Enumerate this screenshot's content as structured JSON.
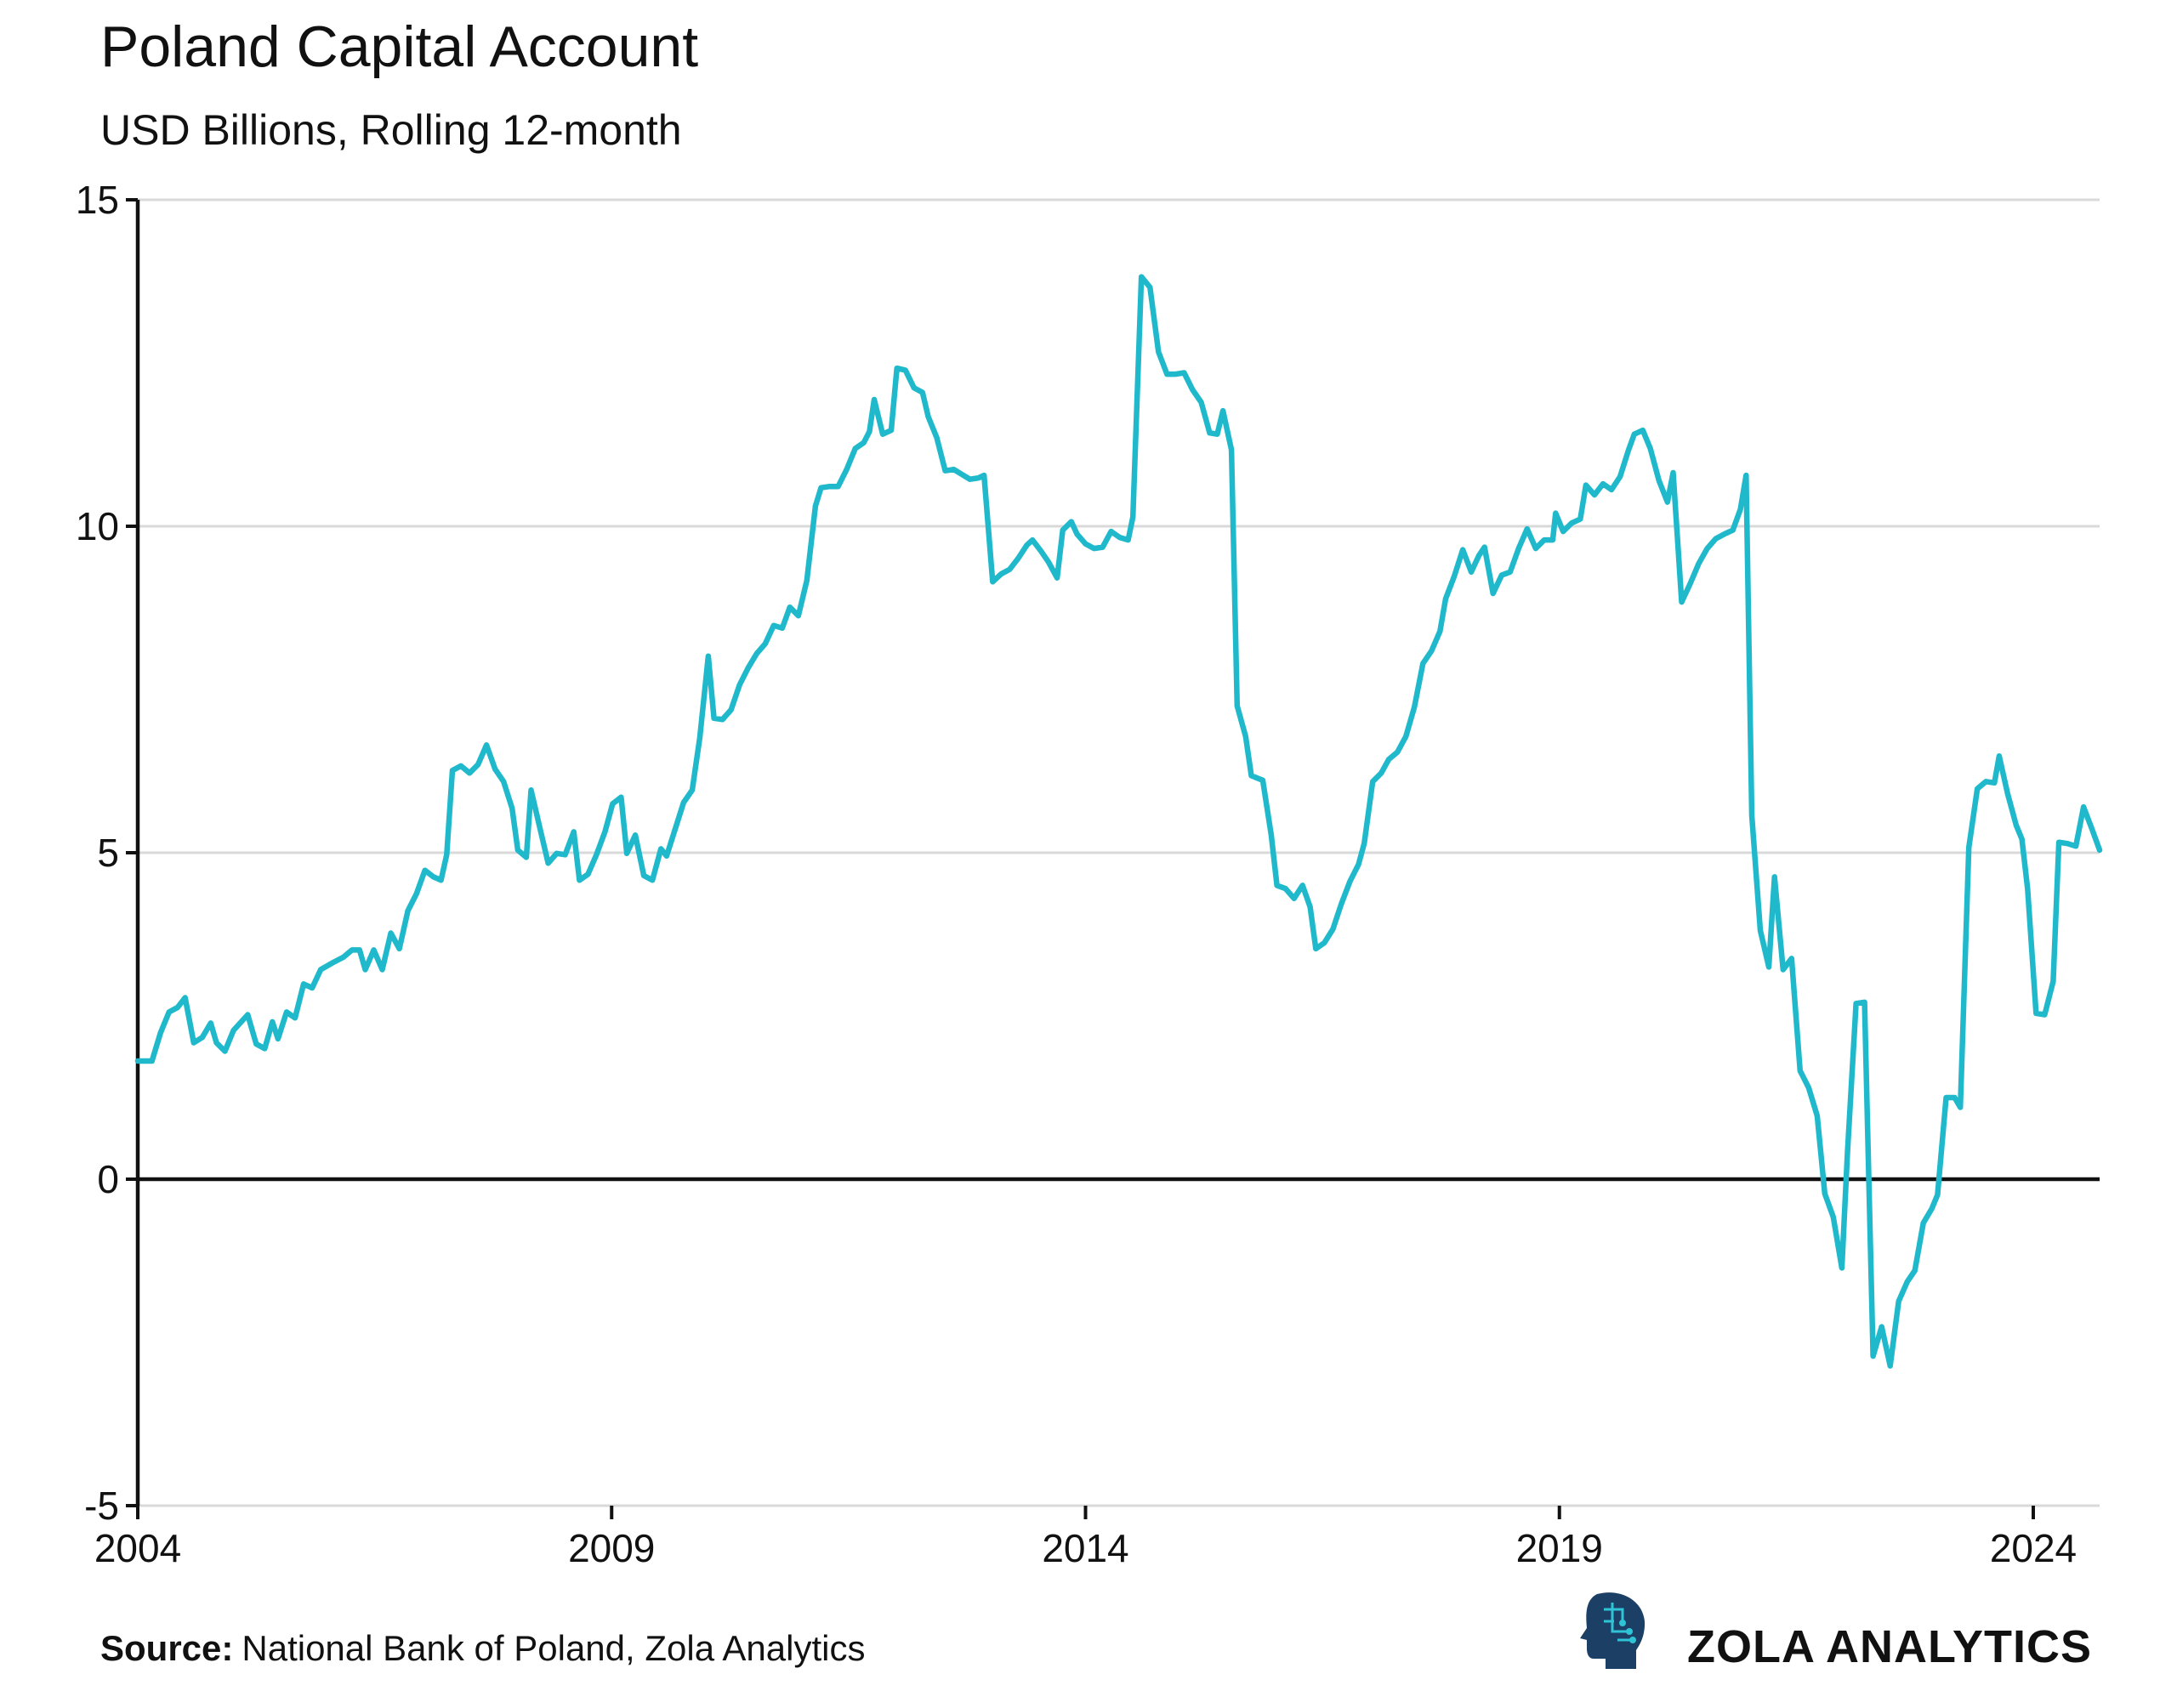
{
  "chart_data": {
    "type": "line",
    "title": "Poland Capital Account",
    "subtitle": "USD Billions, Rolling 12-month",
    "source_label": "Source:",
    "source": "National Bank of Poland, Zola Analytics",
    "brand": "ZOLA ANALYTICS",
    "color": "#1fb9cb",
    "grid": true,
    "xlim": [
      2004,
      2024.7
    ],
    "xticks": [
      2004,
      2009,
      2014,
      2019,
      2024
    ],
    "ylim": [
      -5,
      15
    ],
    "yticks": [
      -5,
      0,
      5,
      10,
      15
    ],
    "x": [
      2004.0,
      2004.15,
      2004.24,
      2004.33,
      2004.42,
      2004.5,
      2004.59,
      2004.68,
      2004.77,
      2004.83,
      2004.92,
      2005.01,
      2005.16,
      2005.25,
      2005.34,
      2005.42,
      2005.48,
      2005.57,
      2005.66,
      2005.75,
      2005.84,
      2005.93,
      2006.05,
      2006.17,
      2006.26,
      2006.34,
      2006.4,
      2006.49,
      2006.58,
      2006.67,
      2006.76,
      2006.85,
      2006.94,
      2007.03,
      2007.12,
      2007.2,
      2007.26,
      2007.32,
      2007.41,
      2007.5,
      2007.59,
      2007.68,
      2007.77,
      2007.86,
      2007.95,
      2008.01,
      2008.1,
      2008.15,
      2008.24,
      2008.33,
      2008.42,
      2008.51,
      2008.6,
      2008.66,
      2008.75,
      2008.84,
      2008.93,
      2009.01,
      2009.1,
      2009.16,
      2009.25,
      2009.34,
      2009.43,
      2009.52,
      2009.58,
      2009.67,
      2009.76,
      2009.85,
      2009.93,
      2010.02,
      2010.08,
      2010.17,
      2010.26,
      2010.35,
      2010.44,
      2010.53,
      2010.62,
      2010.71,
      2010.8,
      2010.88,
      2010.97,
      2011.06,
      2011.15,
      2011.21,
      2011.3,
      2011.39,
      2011.48,
      2011.57,
      2011.66,
      2011.72,
      2011.77,
      2011.86,
      2011.95,
      2012.01,
      2012.1,
      2012.19,
      2012.28,
      2012.34,
      2012.43,
      2012.52,
      2012.61,
      2012.69,
      2012.78,
      2012.87,
      2012.93,
      2013.02,
      2013.11,
      2013.2,
      2013.29,
      2013.38,
      2013.44,
      2013.53,
      2013.61,
      2013.7,
      2013.76,
      2013.85,
      2013.91,
      2014.0,
      2014.09,
      2014.18,
      2014.27,
      2014.36,
      2014.45,
      2014.5,
      2014.59,
      2014.68,
      2014.77,
      2014.86,
      2014.95,
      2015.04,
      2015.13,
      2015.22,
      2015.31,
      2015.39,
      2015.45,
      2015.54,
      2015.6,
      2015.69,
      2015.75,
      2015.87,
      2015.96,
      2016.02,
      2016.11,
      2016.2,
      2016.29,
      2016.37,
      2016.43,
      2016.52,
      2016.61,
      2016.7,
      2016.79,
      2016.88,
      2016.94,
      2017.03,
      2017.12,
      2017.2,
      2017.29,
      2017.38,
      2017.47,
      2017.56,
      2017.65,
      2017.74,
      2017.8,
      2017.89,
      2017.98,
      2018.07,
      2018.15,
      2018.21,
      2018.3,
      2018.39,
      2018.48,
      2018.57,
      2018.66,
      2018.75,
      2018.84,
      2018.93,
      2018.96,
      2019.04,
      2019.13,
      2019.22,
      2019.28,
      2019.37,
      2019.46,
      2019.55,
      2019.64,
      2019.73,
      2019.79,
      2019.88,
      2019.96,
      2020.05,
      2020.14,
      2020.2,
      2020.29,
      2020.38,
      2020.47,
      2020.56,
      2020.65,
      2020.74,
      2020.83,
      2020.91,
      2020.97,
      2021.03,
      2021.12,
      2021.21,
      2021.27,
      2021.36,
      2021.45,
      2021.54,
      2021.63,
      2021.72,
      2021.8,
      2021.89,
      2021.98,
      2022.04,
      2022.13,
      2022.22,
      2022.31,
      2022.4,
      2022.49,
      2022.58,
      2022.67,
      2022.75,
      2022.84,
      2022.93,
      2022.99,
      2023.08,
      2023.17,
      2023.23,
      2023.32,
      2023.41,
      2023.5,
      2023.59,
      2023.64,
      2023.73,
      2023.82,
      2023.88,
      2023.94,
      2024.03,
      2024.12,
      2024.21,
      2024.27,
      2024.36,
      2024.45,
      2024.53,
      2024.62,
      2024.7
    ],
    "values": [
      1.81,
      1.81,
      2.24,
      2.56,
      2.63,
      2.78,
      2.09,
      2.17,
      2.39,
      2.09,
      1.96,
      2.28,
      2.52,
      2.07,
      2.0,
      2.41,
      2.15,
      2.56,
      2.47,
      2.99,
      2.93,
      3.21,
      3.31,
      3.4,
      3.51,
      3.51,
      3.21,
      3.51,
      3.21,
      3.77,
      3.53,
      4.11,
      4.37,
      4.73,
      4.63,
      4.58,
      4.97,
      6.26,
      6.33,
      6.22,
      6.35,
      6.65,
      6.28,
      6.09,
      5.68,
      5.04,
      4.93,
      5.96,
      5.4,
      4.84,
      4.99,
      4.97,
      5.32,
      4.58,
      4.67,
      4.97,
      5.32,
      5.75,
      5.85,
      4.99,
      5.27,
      4.65,
      4.58,
      5.06,
      4.95,
      5.36,
      5.77,
      5.96,
      6.76,
      8.01,
      7.06,
      7.04,
      7.19,
      7.57,
      7.83,
      8.05,
      8.2,
      8.48,
      8.44,
      8.76,
      8.63,
      9.17,
      10.31,
      10.59,
      10.61,
      10.61,
      10.87,
      11.19,
      11.28,
      11.45,
      11.94,
      11.41,
      11.47,
      12.42,
      12.39,
      12.12,
      12.05,
      11.68,
      11.36,
      10.85,
      10.87,
      10.8,
      10.72,
      10.74,
      10.78,
      9.15,
      9.27,
      9.34,
      9.51,
      9.71,
      9.79,
      9.62,
      9.45,
      9.21,
      9.94,
      10.07,
      9.88,
      9.73,
      9.66,
      9.68,
      9.92,
      9.83,
      9.79,
      10.14,
      13.82,
      13.66,
      12.67,
      12.33,
      12.33,
      12.35,
      12.09,
      11.9,
      11.43,
      11.41,
      11.77,
      11.17,
      7.25,
      6.78,
      6.18,
      6.11,
      5.27,
      4.5,
      4.45,
      4.3,
      4.5,
      4.17,
      3.53,
      3.62,
      3.83,
      4.22,
      4.56,
      4.82,
      5.14,
      6.09,
      6.22,
      6.43,
      6.54,
      6.78,
      7.23,
      7.9,
      8.09,
      8.39,
      8.89,
      9.23,
      9.64,
      9.3,
      9.55,
      9.68,
      8.97,
      9.25,
      9.3,
      9.66,
      9.96,
      9.66,
      9.79,
      9.79,
      10.2,
      9.92,
      10.05,
      10.11,
      10.63,
      10.48,
      10.65,
      10.56,
      10.76,
      11.17,
      11.41,
      11.47,
      11.19,
      10.7,
      10.37,
      10.82,
      8.84,
      9.12,
      9.43,
      9.66,
      9.81,
      9.88,
      9.94,
      10.26,
      10.78,
      5.57,
      3.81,
      3.25,
      4.63,
      3.21,
      3.38,
      1.66,
      1.4,
      0.97,
      -0.22,
      -0.58,
      -1.36,
      0.41,
      2.69,
      2.71,
      -2.71,
      -2.26,
      -2.86,
      -1.87,
      -1.57,
      -1.4,
      -0.67,
      -0.45,
      -0.24,
      1.25,
      1.25,
      1.1,
      5.08,
      5.98,
      6.09,
      6.07,
      6.48,
      5.9,
      5.42,
      5.21,
      4.45,
      2.54,
      2.52,
      3.03,
      5.16,
      5.14,
      5.1,
      5.7,
      5.36,
      5.04
    ]
  }
}
